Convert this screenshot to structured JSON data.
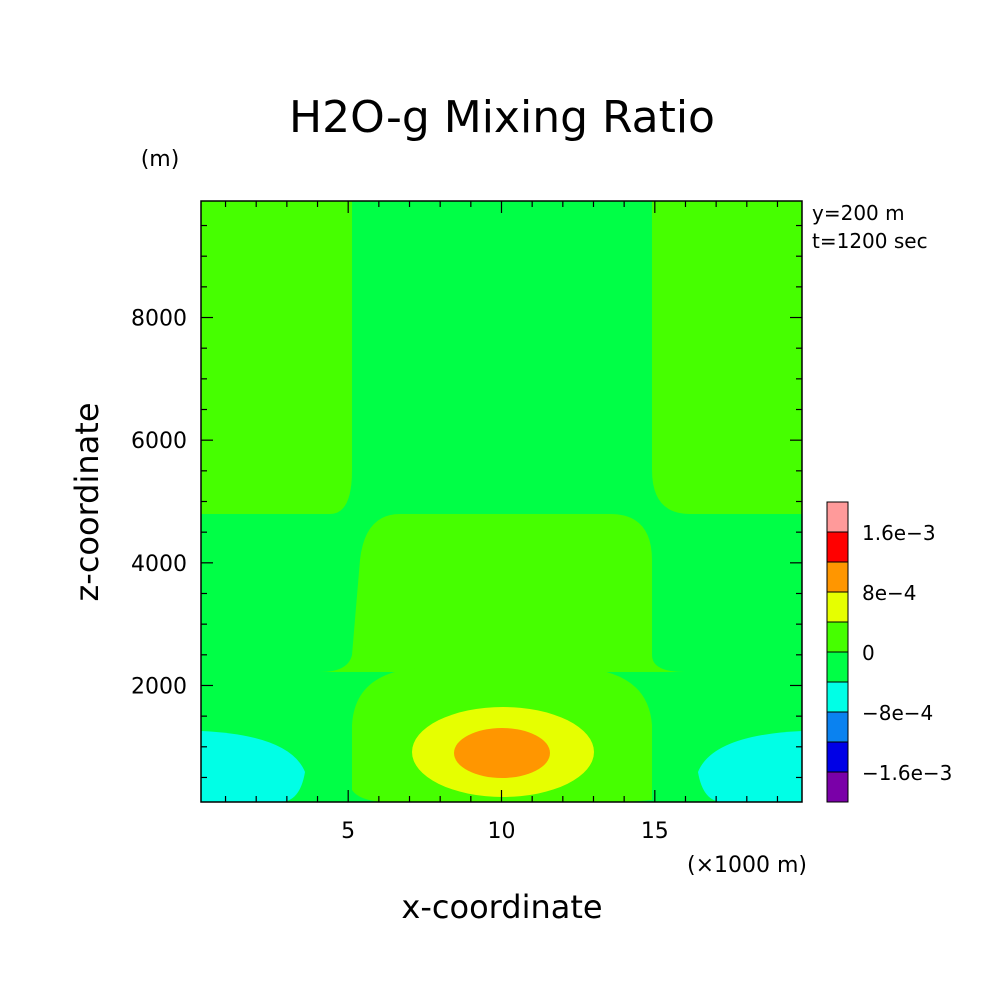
{
  "chart_data": {
    "type": "heatmap",
    "title": "H2O-g Mixing Ratio",
    "xlabel": "x-coordinate",
    "ylabel": "z-coordinate",
    "x_unit": "(×1000 m)",
    "y_unit": "(m)",
    "xlim": [
      0.2,
      19.8
    ],
    "ylim": [
      100,
      9900
    ],
    "x_ticks": [
      {
        "value": 5,
        "label": "5"
      },
      {
        "value": 10,
        "label": "10"
      },
      {
        "value": 15,
        "label": "15"
      }
    ],
    "y_ticks": [
      {
        "value": 2000,
        "label": "2000"
      },
      {
        "value": 4000,
        "label": "4000"
      },
      {
        "value": 6000,
        "label": "6000"
      },
      {
        "value": 8000,
        "label": "8000"
      }
    ],
    "annotations": [
      "y=200 m",
      "t=1200 sec"
    ],
    "colorbar": {
      "levels": [
        {
          "color": "#7a00a8"
        },
        {
          "color": "#0000e6"
        },
        {
          "color": "#0a82f0"
        },
        {
          "color": "#00ffe6"
        },
        {
          "color": "#00ff46"
        },
        {
          "color": "#46ff00"
        },
        {
          "color": "#e6ff00"
        },
        {
          "color": "#ff9600"
        },
        {
          "color": "#ff0000"
        },
        {
          "color": "#ff9a9a"
        }
      ],
      "labels": [
        {
          "value": -0.0016,
          "label": "−1.6e−3"
        },
        {
          "value": -0.0008,
          "label": "−8e−4"
        },
        {
          "value": 0,
          "label": "0"
        },
        {
          "value": 0.0008,
          "label": "8e−4"
        },
        {
          "value": 0.0016,
          "label": "1.6e−3"
        }
      ]
    },
    "field_regions": [
      {
        "level": 5,
        "description": "background"
      },
      {
        "level": 4,
        "description": "central column and middle band"
      },
      {
        "level": 6,
        "description": "lower plume"
      },
      {
        "level": 7,
        "description": "core"
      },
      {
        "level": 3,
        "description": "lateral lower lobes"
      }
    ]
  }
}
